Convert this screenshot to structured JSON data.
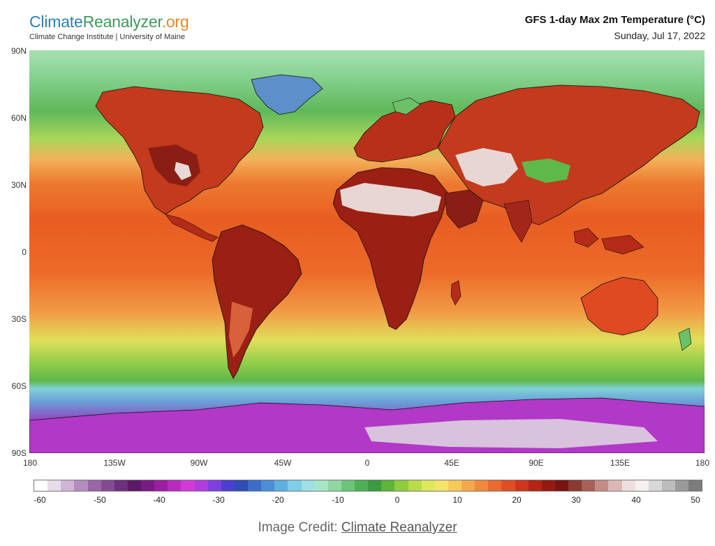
{
  "brand": {
    "part1": "Climate",
    "part2": "Reanalyzer",
    "part3": ".org",
    "subtitle": "Climate Change Institute | University of Maine"
  },
  "title": "GFS 1-day Max 2m Temperature (°C)",
  "date": "Sunday, Jul 17, 2022",
  "lat_labels": [
    "90N",
    "60N",
    "30N",
    "0",
    "30S",
    "60S",
    "90S"
  ],
  "lon_labels": [
    "180",
    "135W",
    "90W",
    "45W",
    "0",
    "45E",
    "90E",
    "135E",
    "180"
  ],
  "colorbar": {
    "ticks": [
      "-60",
      "-50",
      "-40",
      "-30",
      "-20",
      "-10",
      "0",
      "10",
      "20",
      "30",
      "40",
      "50"
    ],
    "colors": [
      "#ffffff",
      "#e8dcea",
      "#cfb5d6",
      "#b38dbf",
      "#9a66a8",
      "#844a93",
      "#6f2e7e",
      "#5c1869",
      "#7a1a83",
      "#9a1fa0",
      "#b82bbd",
      "#d23ad8",
      "#b23be0",
      "#7e3fe0",
      "#4a3fd0",
      "#2f4cb8",
      "#3a6ec8",
      "#4b8fd6",
      "#5fb0e0",
      "#7fcde6",
      "#9fe0e6",
      "#a6e6c6",
      "#8fd8a0",
      "#6cc47a",
      "#4faf55",
      "#3c9a3f",
      "#5fb43a",
      "#8fcc40",
      "#b8dc4a",
      "#dfe85a",
      "#f6e36a",
      "#f7c95a",
      "#f5a84a",
      "#ef8a3c",
      "#e96b2f",
      "#de4e25",
      "#cd361d",
      "#b32416",
      "#951a12",
      "#7a1410",
      "#8a3a30",
      "#a86058",
      "#c58c86",
      "#dcb8b4",
      "#ece0de",
      "#f4f1ef",
      "#d8d8d8",
      "#bcbcbc",
      "#9a9a9a",
      "#7c7c7c"
    ]
  },
  "map_colors": {
    "ocean_tropics": "#ea5a22",
    "land_hot": "#9a1e14",
    "land_temperate": "#c9361b",
    "ocean_mid": "#8ed372",
    "antarctica": "#a12ab5",
    "desert_extreme": "#e7d6d3"
  },
  "credit": {
    "prefix": "Image Credit: ",
    "link": "Climate Reanalyzer"
  }
}
